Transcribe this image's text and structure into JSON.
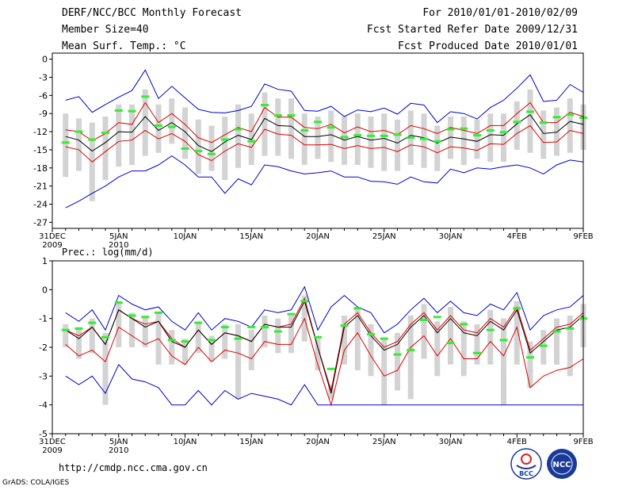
{
  "header": {
    "title": "DERF/NCC/BCC Monthly Forecast",
    "member_size": "Member Size=40",
    "variable": "Mean Surf. Temp.: °C",
    "forecast_period": "For 2010/01/01-2010/02/09",
    "start_ref": "Fcst Started Refer Date 2009/12/31",
    "produced": "Fcst Produced Date 2010/01/01"
  },
  "footer": {
    "url": "http://cmdp.ncc.cma.gov.cn",
    "credit": "GrADS: COLA/IGES",
    "logo_left": "BCC",
    "logo_right": "NCC"
  },
  "colors": {
    "spread_bar": "#d3d3d3",
    "max_min_line": "#0000cc",
    "percentile_line": "#e00000",
    "mean_line": "#000000",
    "marker": "#33ee33"
  },
  "chart_data": [
    {
      "type": "line",
      "title": "Mean Surf. Temp.: °C",
      "x_tick_labels": [
        {
          "day": 0,
          "label": "31DEC",
          "sub": "2009"
        },
        {
          "day": 5,
          "label": "5JAN",
          "sub": "2010"
        },
        {
          "day": 10,
          "label": "10JAN",
          "sub": ""
        },
        {
          "day": 15,
          "label": "15JAN",
          "sub": ""
        },
        {
          "day": 20,
          "label": "20JAN",
          "sub": ""
        },
        {
          "day": 25,
          "label": "25JAN",
          "sub": ""
        },
        {
          "day": 30,
          "label": "30JAN",
          "sub": ""
        },
        {
          "day": 35,
          "label": "4FEB",
          "sub": ""
        },
        {
          "day": 40,
          "label": "9FEB",
          "sub": ""
        }
      ],
      "xlim": [
        0,
        40
      ],
      "ylim": [
        -28,
        1
      ],
      "y_ticks": [
        0,
        -3,
        -6,
        -9,
        -12,
        -15,
        -18,
        -21,
        -24,
        -27
      ],
      "days": [
        1,
        2,
        3,
        4,
        5,
        6,
        7,
        8,
        9,
        10,
        11,
        12,
        13,
        14,
        15,
        16,
        17,
        18,
        19,
        20,
        21,
        22,
        23,
        24,
        25,
        26,
        27,
        28,
        29,
        30,
        31,
        32,
        33,
        34,
        35,
        36,
        37,
        38,
        39,
        40
      ],
      "series": [
        {
          "name": "max",
          "values": [
            -6.8,
            -6.2,
            -8.8,
            -7.5,
            -6.3,
            -5.2,
            -1.8,
            -6.5,
            -4.5,
            -6.4,
            -8.3,
            -8.8,
            -8.9,
            -8.5,
            -7.8,
            -4.1,
            -5.0,
            -5.3,
            -8.5,
            -8.6,
            -7.8,
            -9.5,
            -8.4,
            -8.7,
            -8.1,
            -9.1,
            -7.3,
            -7.6,
            -10.5,
            -8.7,
            -9.0,
            -9.9,
            -8.0,
            -6.8,
            -4.8,
            -2.6,
            -7.0,
            -6.8,
            -4.2,
            -5.5
          ]
        },
        {
          "name": "p90",
          "values": [
            -11.7,
            -12.0,
            -13.5,
            -12.3,
            -10.5,
            -10.8,
            -7.2,
            -10.5,
            -9.0,
            -10.8,
            -13.0,
            -13.8,
            -12.5,
            -11.3,
            -12.0,
            -8.0,
            -9.6,
            -9.6,
            -11.3,
            -11.5,
            -10.8,
            -12.2,
            -11.2,
            -12.0,
            -11.8,
            -12.5,
            -11.0,
            -11.5,
            -12.3,
            -11.3,
            -11.8,
            -12.3,
            -11.0,
            -11.0,
            -9.0,
            -7.2,
            -10.5,
            -10.5,
            -8.8,
            -9.5
          ]
        },
        {
          "name": "mean",
          "values": [
            -12.8,
            -13.4,
            -15.2,
            -13.8,
            -12.0,
            -12.1,
            -9.5,
            -11.8,
            -10.5,
            -12.0,
            -14.3,
            -15.3,
            -13.7,
            -12.6,
            -13.3,
            -9.8,
            -11.0,
            -11.1,
            -12.8,
            -12.8,
            -12.5,
            -13.4,
            -12.8,
            -13.4,
            -13.1,
            -13.9,
            -12.6,
            -13.0,
            -13.9,
            -12.9,
            -13.2,
            -13.6,
            -12.5,
            -12.6,
            -10.7,
            -9.2,
            -12.3,
            -12.1,
            -10.3,
            -10.8
          ]
        },
        {
          "name": "p10",
          "values": [
            -14.5,
            -15.0,
            -17.0,
            -15.3,
            -13.6,
            -13.4,
            -11.8,
            -13.2,
            -12.3,
            -13.6,
            -15.8,
            -16.8,
            -15.2,
            -14.0,
            -14.6,
            -11.6,
            -12.4,
            -12.6,
            -14.2,
            -14.2,
            -14.1,
            -14.8,
            -14.3,
            -14.8,
            -14.6,
            -15.3,
            -14.2,
            -14.5,
            -15.5,
            -14.5,
            -14.7,
            -15.1,
            -14.0,
            -14.1,
            -12.3,
            -11.0,
            -13.8,
            -13.7,
            -11.8,
            -12.3
          ]
        },
        {
          "name": "min",
          "values": [
            -24.6,
            -23.5,
            -22.2,
            -21.0,
            -19.5,
            -18.5,
            -18.5,
            -17.5,
            -16.0,
            -17.5,
            -19.5,
            -19.5,
            -22.2,
            -19.8,
            -20.8,
            -17.5,
            -17.8,
            -18.5,
            -19.0,
            -18.8,
            -18.5,
            -19.5,
            -19.5,
            -20.2,
            -20.3,
            -20.7,
            -19.5,
            -20.3,
            -20.5,
            -18.2,
            -18.8,
            -18.0,
            -18.2,
            -17.8,
            -17.5,
            -18.0,
            -19.0,
            -17.5,
            -16.7,
            -17.0
          ]
        },
        {
          "name": "spread_low",
          "values": [
            -19.5,
            -18.5,
            -23.5,
            -20.0,
            -17.8,
            -17.5,
            -16.0,
            -15.5,
            -14.0,
            -16.5,
            -19.0,
            -18.5,
            -20.0,
            -18.0,
            -17.5,
            -16.0,
            -16.0,
            -16.5,
            -17.5,
            -16.5,
            -17.0,
            -17.5,
            -17.5,
            -18.0,
            -18.5,
            -18.5,
            -17.5,
            -18.0,
            -18.5,
            -16.5,
            -17.5,
            -16.5,
            -17.0,
            -17.0,
            -15.0,
            -15.5,
            -16.5,
            -16.0,
            -15.5,
            -15.0
          ]
        },
        {
          "name": "spread_high",
          "values": [
            -9.0,
            -9.8,
            -10.5,
            -9.5,
            -7.5,
            -7.5,
            -5.0,
            -7.5,
            -6.5,
            -8.0,
            -10.0,
            -11.0,
            -9.5,
            -7.5,
            -9.0,
            -5.5,
            -6.5,
            -6.5,
            -9.0,
            -9.5,
            -8.5,
            -9.5,
            -9.0,
            -9.5,
            -9.0,
            -10.0,
            -8.5,
            -9.0,
            -11.0,
            -9.5,
            -9.5,
            -10.0,
            -9.0,
            -9.0,
            -7.0,
            -5.0,
            -8.5,
            -8.0,
            -6.5,
            -7.5
          ]
        },
        {
          "name": "marker",
          "values": [
            -13.8,
            -12.0,
            -13.3,
            -12.2,
            -8.5,
            -8.6,
            -6.2,
            -11.0,
            -11.2,
            -14.8,
            -15.2,
            -15.7,
            -13.3,
            -11.6,
            -13.6,
            -7.6,
            -9.3,
            -9.3,
            -11.8,
            -10.4,
            -11.3,
            -12.9,
            -12.6,
            -12.7,
            -12.7,
            -12.5,
            -13.0,
            -13.2,
            -13.6,
            -11.6,
            -11.5,
            -12.6,
            -11.8,
            -12.1,
            -10.4,
            -8.7,
            -10.5,
            -9.6,
            -9.2,
            -9.7
          ]
        }
      ]
    },
    {
      "type": "line",
      "title": "Prec.: log(mm/d)",
      "x_tick_labels": [
        {
          "day": 0,
          "label": "31DEC",
          "sub": "2009"
        },
        {
          "day": 5,
          "label": "5JAN",
          "sub": "2010"
        },
        {
          "day": 10,
          "label": "10JAN",
          "sub": ""
        },
        {
          "day": 15,
          "label": "15JAN",
          "sub": ""
        },
        {
          "day": 20,
          "label": "20JAN",
          "sub": ""
        },
        {
          "day": 25,
          "label": "25JAN",
          "sub": ""
        },
        {
          "day": 30,
          "label": "30JAN",
          "sub": ""
        },
        {
          "day": 35,
          "label": "4FEB",
          "sub": ""
        },
        {
          "day": 40,
          "label": "9FEB",
          "sub": ""
        }
      ],
      "xlim": [
        0,
        40
      ],
      "ylim": [
        -5,
        1
      ],
      "y_ticks": [
        1,
        0,
        -1,
        -2,
        -3,
        -4,
        -5
      ],
      "days": [
        1,
        2,
        3,
        4,
        5,
        6,
        7,
        8,
        9,
        10,
        11,
        12,
        13,
        14,
        15,
        16,
        17,
        18,
        19,
        20,
        21,
        22,
        23,
        24,
        25,
        26,
        27,
        28,
        29,
        30,
        31,
        32,
        33,
        34,
        35,
        36,
        37,
        38,
        39,
        40
      ],
      "series": [
        {
          "name": "max",
          "values": [
            -0.8,
            -1.1,
            -0.7,
            -1.4,
            -0.2,
            -0.5,
            -0.7,
            -0.6,
            -1.1,
            -1.4,
            -0.8,
            -1.4,
            -1.0,
            -1.1,
            -1.3,
            -0.7,
            -0.8,
            -0.7,
            0.1,
            -1.4,
            -0.6,
            -0.2,
            -0.6,
            -0.8,
            -1.5,
            -1.2,
            -0.7,
            -0.3,
            -0.8,
            -0.4,
            -0.8,
            -0.9,
            -0.5,
            -0.7,
            -0.1,
            -1.4,
            -0.9,
            -0.7,
            -0.6,
            -0.2
          ]
        },
        {
          "name": "p90",
          "values": [
            -1.4,
            -1.6,
            -1.3,
            -1.9,
            -0.7,
            -1.0,
            -1.2,
            -1.1,
            -1.7,
            -2.0,
            -1.4,
            -1.9,
            -1.5,
            -1.6,
            -1.8,
            -1.2,
            -1.3,
            -1.2,
            -0.3,
            -2.0,
            -3.5,
            -1.2,
            -0.8,
            -1.5,
            -2.0,
            -1.8,
            -1.2,
            -0.8,
            -1.4,
            -0.9,
            -1.4,
            -1.5,
            -1.0,
            -1.3,
            -0.6,
            -2.1,
            -1.7,
            -1.3,
            -1.2,
            -0.8
          ]
        },
        {
          "name": "mean",
          "values": [
            -1.4,
            -1.7,
            -1.3,
            -1.9,
            -0.7,
            -1.0,
            -1.3,
            -1.1,
            -1.8,
            -2.0,
            -1.4,
            -1.9,
            -1.5,
            -1.6,
            -1.8,
            -1.2,
            -1.3,
            -1.3,
            -0.4,
            -2.0,
            -3.6,
            -1.3,
            -0.9,
            -1.6,
            -2.1,
            -1.9,
            -1.3,
            -0.9,
            -1.5,
            -1.0,
            -1.5,
            -1.6,
            -1.1,
            -1.4,
            -0.7,
            -2.2,
            -1.8,
            -1.4,
            -1.3,
            -0.9
          ]
        },
        {
          "name": "p10",
          "values": [
            -1.9,
            -2.3,
            -2.1,
            -2.5,
            -1.3,
            -1.6,
            -1.9,
            -1.7,
            -2.3,
            -2.6,
            -2.0,
            -2.5,
            -2.1,
            -2.2,
            -2.4,
            -1.8,
            -1.9,
            -1.9,
            -1.0,
            -2.6,
            -4.0,
            -2.1,
            -1.5,
            -2.3,
            -3.0,
            -2.8,
            -2.0,
            -1.6,
            -2.3,
            -1.7,
            -2.4,
            -2.4,
            -1.8,
            -2.3,
            -1.3,
            -3.4,
            -3.0,
            -2.8,
            -2.7,
            -2.4
          ]
        },
        {
          "name": "min",
          "values": [
            -3.0,
            -3.3,
            -3.0,
            -3.6,
            -2.6,
            -3.1,
            -3.2,
            -3.4,
            -4.0,
            -4.0,
            -3.5,
            -4.0,
            -3.5,
            -3.8,
            -3.6,
            -3.7,
            -3.8,
            -4.0,
            -3.3,
            -4.0,
            -4.0,
            -4.0,
            -4.0,
            -4.0,
            -4.0,
            -4.0,
            -4.0,
            -4.0,
            -4.0,
            -4.0,
            -4.0,
            -4.0,
            -4.0,
            -4.0,
            -4.0,
            -4.0,
            -4.0,
            -4.0,
            -4.0,
            -4.0
          ]
        },
        {
          "name": "spread_low",
          "values": [
            -2.0,
            -2.4,
            -2.2,
            -4.0,
            -2.0,
            -2.0,
            -2.0,
            -2.6,
            -2.6,
            -2.6,
            -2.2,
            -2.5,
            -2.4,
            -3.8,
            -2.8,
            -2.0,
            -2.2,
            -2.2,
            -1.8,
            -2.8,
            -3.8,
            -2.6,
            -2.8,
            -3.0,
            -4.0,
            -3.5,
            -3.8,
            -2.4,
            -3.0,
            -2.6,
            -3.0,
            -2.6,
            -2.6,
            -4.0,
            -2.6,
            -3.4,
            -2.6,
            -2.6,
            -3.0,
            -2.0
          ]
        },
        {
          "name": "spread_high",
          "values": [
            -1.2,
            -1.3,
            -1.0,
            -1.5,
            -0.4,
            -0.8,
            -0.9,
            -0.8,
            -1.4,
            -1.7,
            -1.1,
            -1.6,
            -1.2,
            -1.2,
            -1.4,
            -0.9,
            -1.0,
            -0.9,
            -0.2,
            -1.7,
            -3.3,
            -0.9,
            -0.6,
            -1.2,
            -1.7,
            -1.5,
            -0.9,
            -0.5,
            -1.1,
            -0.6,
            -1.1,
            -1.2,
            -0.7,
            -1.0,
            -0.4,
            -1.8,
            -1.4,
            -1.0,
            -0.9,
            -0.5
          ]
        },
        {
          "name": "marker",
          "values": [
            -1.4,
            -1.35,
            -1.15,
            -1.65,
            -0.45,
            -0.9,
            -0.95,
            -0.8,
            -1.75,
            -1.8,
            -1.15,
            -1.75,
            -1.3,
            -1.7,
            -1.3,
            -1.3,
            -1.45,
            -0.85,
            -0.4,
            -1.65,
            -2.75,
            -1.25,
            -0.65,
            -1.55,
            -1.7,
            -2.25,
            -2.1,
            -1.05,
            -0.95,
            -1.85,
            -1.2,
            -2.2,
            -1.4,
            -1.75,
            -0.65,
            -2.35,
            -1.95,
            -1.45,
            -1.35,
            -1.0
          ]
        }
      ]
    }
  ]
}
